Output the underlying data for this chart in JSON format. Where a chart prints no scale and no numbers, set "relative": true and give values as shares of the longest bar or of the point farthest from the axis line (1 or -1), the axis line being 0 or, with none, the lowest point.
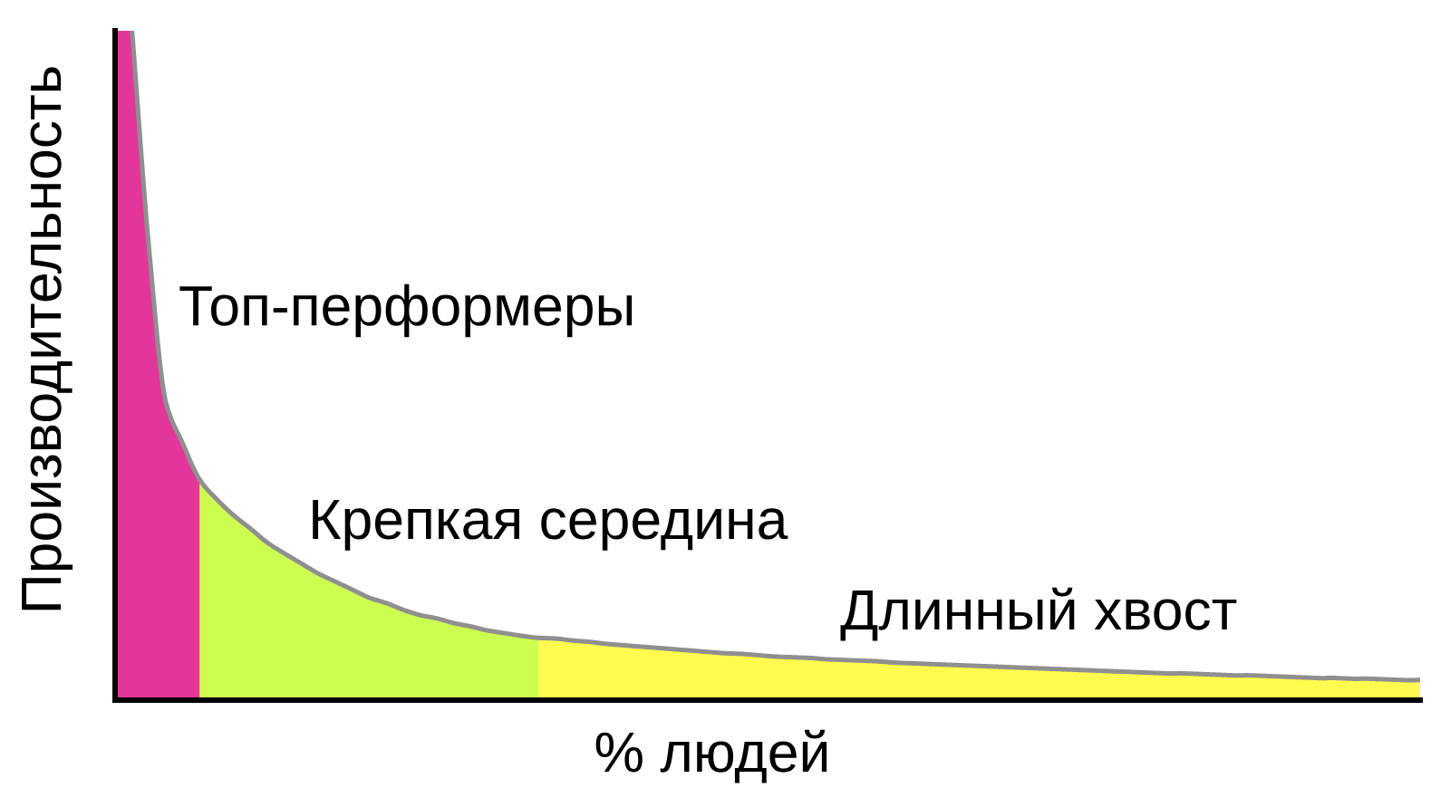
{
  "chart_data": {
    "type": "area",
    "relative": true,
    "xlabel": "% людей",
    "ylabel": "Производительность",
    "categories": [
      null,
      null,
      null,
      null,
      null,
      null,
      null,
      null,
      null,
      null,
      null,
      null,
      null,
      null,
      null,
      null,
      null,
      null,
      null,
      null,
      null,
      null,
      null,
      null,
      null,
      null,
      null,
      null,
      null,
      null,
      null,
      null,
      null,
      null,
      null,
      null,
      null,
      null,
      null,
      null,
      null,
      null,
      null,
      null,
      null,
      null,
      null,
      null,
      null,
      null,
      null,
      null,
      null,
      null,
      null,
      null,
      null,
      null,
      null,
      null,
      null,
      null,
      null,
      null,
      null,
      null,
      null,
      null,
      null,
      null,
      null,
      null,
      null,
      null,
      null,
      null,
      null,
      null
    ],
    "series": [
      {
        "name": "Топ-перформеры",
        "color": "#e4359a",
        "values": [
          1,
          1,
          0.675,
          0.445,
          0.383,
          0.329,
          null,
          null,
          null,
          null,
          null,
          null,
          null,
          null,
          null,
          null,
          null,
          null,
          null,
          null,
          null,
          null,
          null,
          null,
          null,
          null,
          null,
          null,
          null,
          null,
          null,
          null,
          null,
          null,
          null,
          null,
          null,
          null,
          null,
          null,
          null,
          null,
          null,
          null,
          null,
          null,
          null,
          null,
          null,
          null,
          null,
          null,
          null,
          null,
          null,
          null,
          null,
          null,
          null,
          null,
          null,
          null,
          null,
          null,
          null,
          null,
          null,
          null,
          null,
          null,
          null,
          null,
          null,
          null,
          null,
          null,
          null,
          null
        ]
      },
      {
        "name": "Крепкая середина",
        "color": "#cdfd51",
        "values": [
          null,
          null,
          null,
          null,
          null,
          0.329,
          0.3,
          0.276,
          0.256,
          0.235,
          0.219,
          0.204,
          0.189,
          0.177,
          0.165,
          0.153,
          0.145,
          0.135,
          0.127,
          0.122,
          0.115,
          0.11,
          0.104,
          0.1,
          0.096,
          0.093,
          null,
          null,
          null,
          null,
          null,
          null,
          null,
          null,
          null,
          null,
          null,
          null,
          null,
          null,
          null,
          null,
          null,
          null,
          null,
          null,
          null,
          null,
          null,
          null,
          null,
          null,
          null,
          null,
          null,
          null,
          null,
          null,
          null,
          null,
          null,
          null,
          null,
          null,
          null,
          null,
          null,
          null,
          null,
          null,
          null,
          null,
          null,
          null,
          null,
          null,
          null,
          null
        ]
      },
      {
        "name": "Длинный хвост",
        "color": "#fffb4f",
        "values": [
          null,
          null,
          null,
          null,
          null,
          null,
          null,
          null,
          null,
          null,
          null,
          null,
          null,
          null,
          null,
          null,
          null,
          null,
          null,
          null,
          null,
          null,
          null,
          null,
          null,
          0.093,
          0.092,
          0.089,
          0.087,
          0.084,
          0.082,
          0.08,
          0.078,
          0.076,
          0.074,
          0.072,
          0.07,
          0.069,
          0.067,
          0.065,
          0.064,
          0.063,
          0.061,
          0.06,
          0.059,
          0.058,
          0.056,
          0.055,
          0.054,
          0.053,
          0.052,
          0.051,
          0.05,
          0.049,
          0.048,
          0.047,
          0.046,
          0.045,
          0.044,
          0.043,
          0.042,
          0.041,
          0.04,
          0.04,
          0.039,
          0.038,
          0.037,
          0.037,
          0.036,
          0.035,
          0.034,
          0.033,
          0.033,
          0.032,
          0.032,
          0.031,
          0.03,
          0.03
        ]
      },
      {
        "type": "line",
        "color": "#8f8f8f",
        "values": [
          null,
          1,
          0.675,
          0.445,
          0.383,
          0.329,
          0.3,
          0.276,
          0.256,
          0.235,
          0.219,
          0.204,
          0.189,
          0.177,
          0.165,
          0.153,
          0.145,
          0.135,
          0.127,
          0.122,
          0.115,
          0.11,
          0.104,
          0.1,
          0.096,
          0.093,
          0.092,
          0.089,
          0.087,
          0.084,
          0.082,
          0.08,
          0.078,
          0.076,
          0.074,
          0.072,
          0.07,
          0.069,
          0.067,
          0.065,
          0.064,
          0.063,
          0.061,
          0.06,
          0.059,
          0.058,
          0.056,
          0.055,
          0.054,
          0.053,
          0.052,
          0.051,
          0.05,
          0.049,
          0.048,
          0.047,
          0.046,
          0.045,
          0.044,
          0.043,
          0.042,
          0.041,
          0.04,
          0.04,
          0.039,
          0.038,
          0.037,
          0.037,
          0.036,
          0.035,
          0.034,
          0.033,
          0.033,
          0.032,
          0.032,
          0.031,
          0.03,
          0.03
        ]
      }
    ]
  }
}
